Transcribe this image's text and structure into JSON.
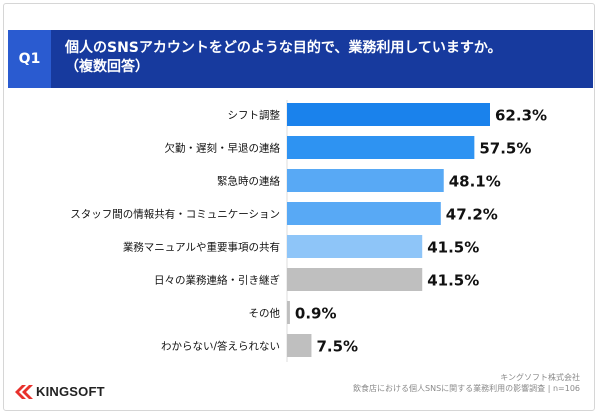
{
  "header": {
    "q_label": "Q1",
    "question_line1": "個人のSNSアカウントをどのような目的で、業務利用していますか。",
    "question_line2": "（複数回答）"
  },
  "chart_data": {
    "type": "bar",
    "orientation": "horizontal",
    "categories": [
      "シフト調整",
      "欠勤・遅刻・早退の連絡",
      "緊急時の連絡",
      "スタッフ間の情報共有・コミュニケーション",
      "業務マニュアルや重要事項の共有",
      "日々の業務連絡・引き継ぎ",
      "その他",
      "わからない/答えられない"
    ],
    "values": [
      62.3,
      57.5,
      48.1,
      47.2,
      41.5,
      41.5,
      0.9,
      7.5
    ],
    "value_labels": [
      "62.3%",
      "57.5%",
      "48.1%",
      "47.2%",
      "41.5%",
      "41.5%",
      "0.9%",
      "7.5%"
    ],
    "colors": [
      "#1a82ec",
      "#2e93f2",
      "#58a9f5",
      "#58a9f5",
      "#8ec5f8",
      "#bfbfbf",
      "#bfbfbf",
      "#bfbfbf"
    ],
    "xlim": [
      0,
      62.3
    ],
    "grid": false,
    "legend": "none"
  },
  "footer": {
    "source_line1": "キングソフト株式会社",
    "source_line2": "飲食店における個人SNSに関する業務利用の影響調査 | n=106",
    "logo_text": "KINGSOFT",
    "logo_color": "#e8312c"
  }
}
